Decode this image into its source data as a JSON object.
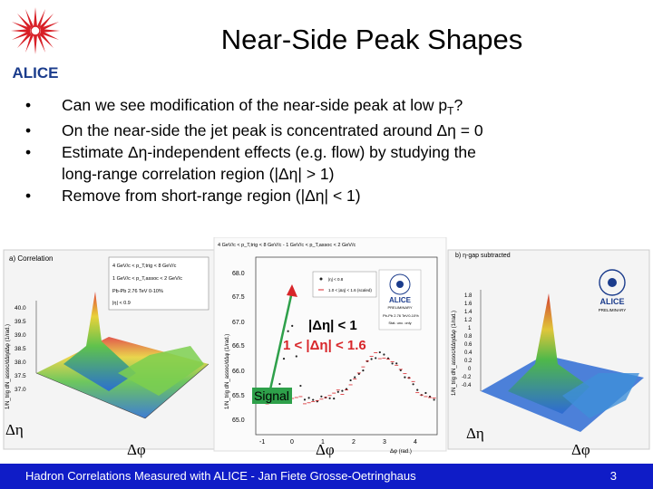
{
  "slide": {
    "title": "Near-Side Peak Shapes",
    "bullets": [
      {
        "text": "Can we see modification of the near-side peak at low p",
        "sub": "T",
        "tail": "?"
      },
      {
        "text": "On the near-side the jet peak is concentrated around Δη = 0"
      },
      {
        "text": "Estimate Δη-independent effects (e.g. flow) by studying the",
        "cont": "long-range correlation region (|Δη| > 1)"
      },
      {
        "text": "Remove from short-range region (|Δη| < 1)"
      }
    ]
  },
  "logo": {
    "text": "ALICE"
  },
  "figure": {
    "left_panel": {
      "title": "a) Correlation",
      "legend": [
        "4 GeV/c < p_T,trig < 8 GeV/c",
        "1 GeV/c < p_T,assoc < 2 GeV/c",
        "Pb-Pb 2.76 TeV 0-10%",
        "|η| < 0.9"
      ],
      "zlabel": "1/N_trig dN_assoc/dΔηdΔφ (1/rad.)",
      "z_ticks": [
        "40.0",
        "39.5",
        "39.0",
        "38.5",
        "38.0",
        "37.5",
        "37.0"
      ],
      "axis_eta": "Δη",
      "axis_phi": "Δφ"
    },
    "middle_panel": {
      "header": "4 GeV/c < p_T,trig < 8 GeV/c - 1 GeV/c < p_T,assoc < 2 GeV/c",
      "ylabel": "1/N_trig dN_assoc/dΔφ (1/rad.)",
      "y_ticks": [
        "68.0",
        "67.5",
        "67.0",
        "66.5",
        "66.0",
        "65.5",
        "65.0"
      ],
      "x_ticks": [
        "-1",
        "0",
        "1",
        "2",
        "3",
        "4"
      ],
      "xlabel": "Δφ (rad.)",
      "legend": [
        "|η| < 0.8",
        "1.0 < |Δη| < 1.6 (scaled)"
      ],
      "preliminary": [
        "ALICE",
        "PRELIMINARY",
        "Pb-Pb 2.76 TeV",
        "0-10%",
        "Stat. unc. only"
      ],
      "overlay_label_1": "|Δη| < 1",
      "overlay_label_2": "1 < |Δη| < 1.6",
      "signal_label": "Signal",
      "axis_phi": "Δφ"
    },
    "right_panel": {
      "title": "b) η-gap subtracted",
      "zlabel": "1/N_trig dN_assoc/dΔηdΔφ (1/rad.)",
      "z_ticks": [
        "1.8",
        "1.6",
        "1.4",
        "1.2",
        "1",
        "0.8",
        "0.6",
        "0.4",
        "0.2",
        "0",
        "-0.2",
        "-0.4"
      ],
      "logo": [
        "ALICE",
        "PRELIMINARY"
      ],
      "axis_eta": "Δη",
      "axis_phi": "Δφ"
    }
  },
  "footer": {
    "text": "Hadron Correlations Measured with ALICE - Jan Fiete Grosse-Oetringhaus",
    "page": "3"
  },
  "colors": {
    "footer_bg": "#0f1cc7",
    "alice_red": "#d81f26",
    "alice_blue": "#1b3c8c",
    "signal_green": "#2ea04a"
  }
}
